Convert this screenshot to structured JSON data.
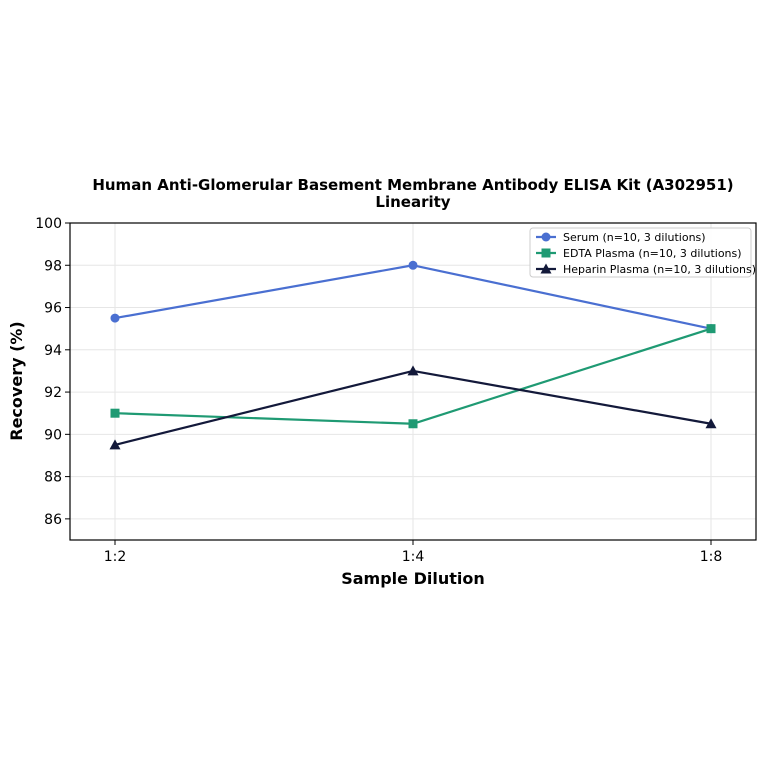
{
  "chart_data": {
    "type": "line",
    "title": "Human Anti-Glomerular Basement Membrane Antibody ELISA Kit (A302951)",
    "subtitle": "Linearity",
    "xlabel": "Sample Dilution",
    "ylabel": "Recovery (%)",
    "categories": [
      "1:2",
      "1:4",
      "1:8"
    ],
    "ylim": [
      85,
      100
    ],
    "yticks": [
      86,
      88,
      90,
      92,
      94,
      96,
      98,
      100
    ],
    "grid": true,
    "legend_position": "top-right",
    "series": [
      {
        "name": "Serum (n=10, 3 dilutions)",
        "values": [
          95.5,
          98.0,
          95.0
        ],
        "color": "#4a6fd1",
        "marker": "circle"
      },
      {
        "name": "EDTA Plasma (n=10, 3 dilutions)",
        "values": [
          91.0,
          90.5,
          95.0
        ],
        "color": "#1f9a73",
        "marker": "square"
      },
      {
        "name": "Heparin Plasma (n=10, 3 dilutions)",
        "values": [
          89.5,
          93.0,
          90.5
        ],
        "color": "#13193a",
        "marker": "triangle"
      }
    ]
  }
}
